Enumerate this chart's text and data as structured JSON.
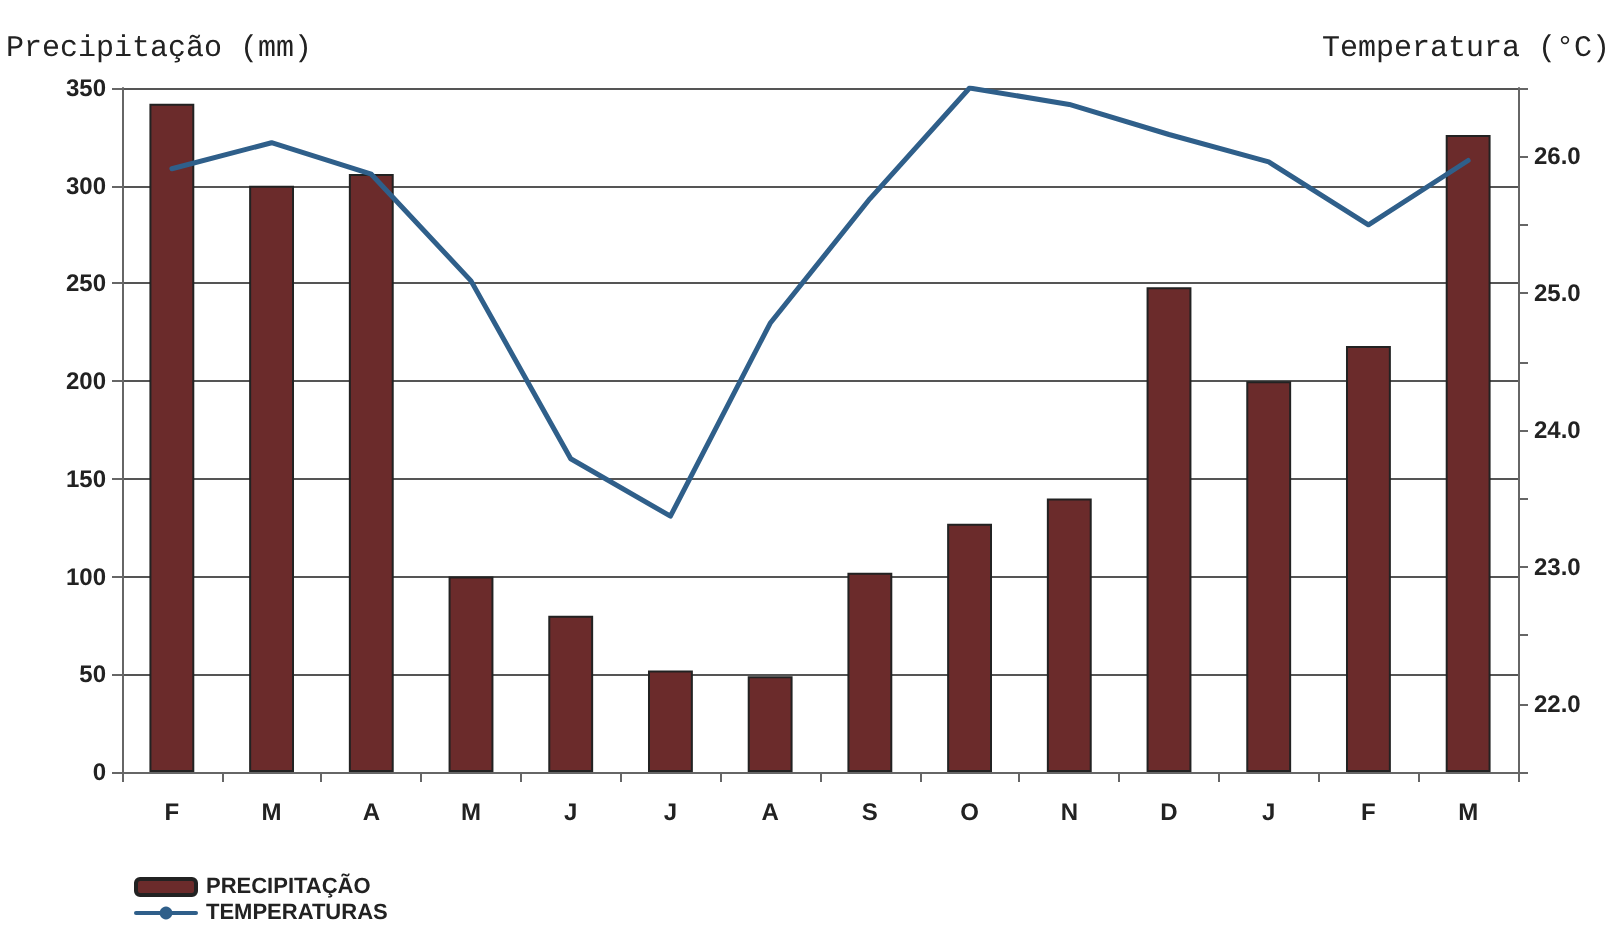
{
  "chart_data": {
    "type": "bar",
    "ylabel": "Precipitação (mm)",
    "y2label": "Temperatura (°C)",
    "categories": [
      "F",
      "M",
      "A",
      "M",
      "J",
      "J",
      "A",
      "S",
      "O",
      "N",
      "D",
      "J",
      "F",
      "M"
    ],
    "series": [
      {
        "name": "PRECIPITAÇÃO",
        "color": "#6b2b2b",
        "values": [
          342,
          300,
          306,
          100,
          80,
          52,
          49,
          102,
          127,
          140,
          248,
          200,
          218,
          326
        ]
      },
      {
        "name": "TEMPERATURAS",
        "type": "line",
        "axis": "y2",
        "color": "#2f5f8a",
        "values": [
          25.91,
          26.1,
          25.87,
          25.09,
          23.79,
          23.37,
          24.78,
          25.69,
          26.5,
          26.38,
          26.16,
          25.96,
          25.5,
          25.97
        ]
      }
    ],
    "ylim": [
      0,
      350
    ],
    "yticks": [
      0,
      50,
      100,
      150,
      200,
      250,
      300,
      350
    ],
    "y2lim": [
      21.5,
      26.5
    ],
    "y2ticks": [
      {
        "value": 21.5,
        "label": null
      },
      {
        "value": 22,
        "label": "22.0"
      },
      {
        "value": 22.5,
        "label": null
      },
      {
        "value": 23,
        "label": "23.0"
      },
      {
        "value": 23.5,
        "label": null
      },
      {
        "value": 24,
        "label": "24.0"
      },
      {
        "value": 24.5,
        "label": null
      },
      {
        "value": 25,
        "label": "25.0"
      },
      {
        "value": 25.5,
        "label": null
      },
      {
        "value": 26,
        "label": "26.0"
      },
      {
        "value": 26.5,
        "label": null
      }
    ],
    "grid": "y",
    "legend": "bottom left",
    "line_style": "solid"
  }
}
